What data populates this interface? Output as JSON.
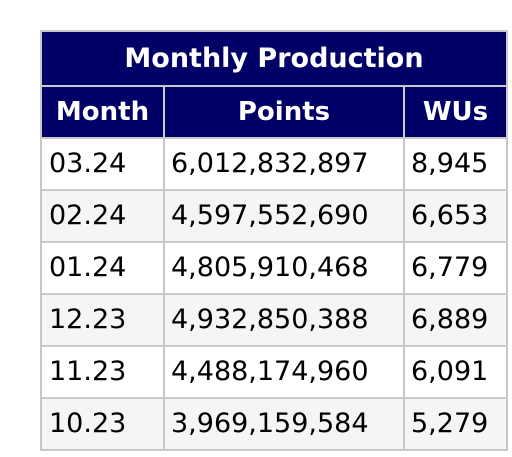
{
  "table": {
    "title": "Monthly Production",
    "columns": [
      "Month",
      "Points",
      "WUs"
    ],
    "rows": [
      {
        "month": "03.24",
        "points": "6,012,832,897",
        "wus": "8,945"
      },
      {
        "month": "02.24",
        "points": "4,597,552,690",
        "wus": "6,653"
      },
      {
        "month": "01.24",
        "points": "4,805,910,468",
        "wus": "6,779"
      },
      {
        "month": "12.23",
        "points": "4,932,850,388",
        "wus": "6,889"
      },
      {
        "month": "11.23",
        "points": "4,488,174,960",
        "wus": "6,091"
      },
      {
        "month": "10.23",
        "points": "3,969,159,584",
        "wus": "5,279"
      }
    ]
  }
}
